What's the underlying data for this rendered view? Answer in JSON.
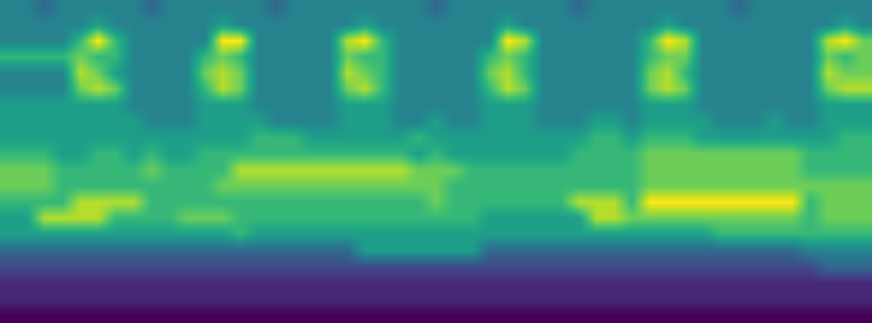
{
  "chart_data": {
    "type": "heatmap",
    "color": "Viridis",
    "tick_labels": false,
    "zlim": [
      0,
      9
    ],
    "cells": [
      [
        4,
        4,
        3,
        4,
        4,
        4,
        4,
        4,
        3,
        4,
        4,
        4,
        4,
        4,
        4,
        3,
        4,
        4,
        4,
        4,
        4,
        4,
        4,
        4,
        3,
        4,
        4,
        4,
        4,
        4,
        4,
        4,
        3,
        4,
        4,
        4,
        4,
        4,
        4,
        4,
        4,
        3,
        4,
        4,
        4,
        4,
        4,
        4,
        4
      ],
      [
        4,
        4,
        4,
        4,
        4,
        5,
        4,
        4,
        4,
        4,
        4,
        4,
        5,
        4,
        4,
        4,
        4,
        4,
        4,
        4,
        5,
        4,
        4,
        4,
        4,
        4,
        4,
        4,
        5,
        4,
        4,
        4,
        4,
        4,
        4,
        4,
        4,
        5,
        4,
        4,
        4,
        4,
        4,
        4,
        4,
        4,
        4,
        5,
        4
      ],
      [
        4,
        4,
        4,
        4,
        6,
        9,
        6,
        4,
        4,
        4,
        4,
        4,
        9,
        9,
        4,
        4,
        4,
        4,
        4,
        8,
        9,
        6,
        4,
        4,
        4,
        4,
        4,
        4,
        9,
        8,
        4,
        4,
        4,
        4,
        4,
        4,
        6,
        9,
        8,
        4,
        4,
        4,
        4,
        4,
        4,
        4,
        8,
        9,
        7
      ],
      [
        6,
        6,
        6,
        6,
        7,
        6,
        6,
        4,
        4,
        4,
        4,
        6,
        7,
        6,
        4,
        4,
        4,
        4,
        4,
        7,
        6,
        6,
        4,
        4,
        4,
        4,
        4,
        6,
        7,
        6,
        4,
        4,
        4,
        4,
        4,
        4,
        6,
        7,
        7,
        4,
        4,
        4,
        4,
        4,
        4,
        4,
        7,
        6,
        7
      ],
      [
        4,
        4,
        4,
        4,
        8,
        7,
        5,
        4,
        4,
        4,
        4,
        7,
        8,
        7,
        4,
        4,
        4,
        4,
        4,
        8,
        7,
        6,
        4,
        4,
        4,
        4,
        4,
        7,
        8,
        6,
        4,
        4,
        4,
        4,
        4,
        4,
        7,
        8,
        6,
        4,
        4,
        4,
        4,
        4,
        4,
        4,
        8,
        7,
        7
      ],
      [
        4,
        4,
        4,
        4,
        7,
        8,
        7,
        4,
        4,
        4,
        4,
        6,
        8,
        7,
        4,
        4,
        4,
        4,
        4,
        7,
        8,
        6,
        4,
        4,
        4,
        4,
        4,
        6,
        8,
        7,
        4,
        4,
        4,
        4,
        4,
        4,
        7,
        8,
        7,
        4,
        4,
        4,
        4,
        4,
        4,
        4,
        7,
        8,
        8
      ],
      [
        5,
        5,
        5,
        5,
        5,
        5,
        5,
        4,
        4,
        4,
        4,
        5,
        5,
        5,
        4,
        4,
        4,
        4,
        4,
        5,
        5,
        5,
        4,
        4,
        4,
        4,
        4,
        5,
        5,
        5,
        4,
        4,
        4,
        4,
        4,
        4,
        5,
        5,
        5,
        4,
        4,
        4,
        4,
        4,
        4,
        4,
        5,
        5,
        5
      ],
      [
        5,
        5,
        5,
        5,
        5,
        5,
        5,
        5,
        4,
        4,
        4,
        5,
        5,
        5,
        5,
        4,
        4,
        4,
        4,
        5,
        5,
        5,
        4,
        4,
        5,
        4,
        4,
        5,
        5,
        5,
        4,
        4,
        4,
        5,
        5,
        4,
        5,
        5,
        5,
        5,
        4,
        4,
        4,
        5,
        4,
        4,
        5,
        5,
        5
      ],
      [
        5,
        5,
        5,
        5,
        5,
        5,
        5,
        5,
        5,
        5,
        5,
        5,
        5,
        5,
        6,
        6,
        6,
        5,
        5,
        5,
        5,
        5,
        5,
        6,
        5,
        5,
        5,
        5,
        5,
        5,
        5,
        5,
        5,
        6,
        6,
        5,
        6,
        6,
        6,
        5,
        5,
        5,
        5,
        5,
        5,
        5,
        5,
        6,
        6
      ],
      [
        6,
        6,
        6,
        5,
        5,
        6,
        6,
        5,
        6,
        5,
        5,
        6,
        6,
        6,
        6,
        6,
        6,
        6,
        6,
        6,
        6,
        6,
        6,
        5,
        6,
        5,
        5,
        5,
        5,
        5,
        5,
        5,
        6,
        6,
        6,
        6,
        7,
        7,
        7,
        7,
        7,
        7,
        7,
        7,
        7,
        6,
        6,
        6,
        6
      ],
      [
        7,
        7,
        7,
        6,
        6,
        6,
        6,
        6,
        7,
        6,
        6,
        6,
        6,
        8,
        8,
        8,
        8,
        8,
        8,
        8,
        8,
        8,
        8,
        7,
        7,
        7,
        6,
        6,
        6,
        6,
        6,
        6,
        6,
        6,
        6,
        6,
        7,
        7,
        7,
        7,
        7,
        7,
        7,
        7,
        7,
        6,
        6,
        6,
        6
      ],
      [
        7,
        7,
        7,
        6,
        6,
        6,
        6,
        6,
        6,
        6,
        6,
        6,
        7,
        7,
        7,
        7,
        7,
        7,
        7,
        7,
        7,
        7,
        7,
        7,
        7,
        6,
        6,
        6,
        6,
        6,
        6,
        6,
        6,
        6,
        6,
        6,
        7,
        7,
        7,
        7,
        7,
        7,
        7,
        7,
        7,
        7,
        7,
        7,
        7
      ],
      [
        6,
        6,
        6,
        6,
        8,
        8,
        8,
        8,
        6,
        6,
        6,
        6,
        6,
        6,
        6,
        6,
        6,
        6,
        6,
        6,
        6,
        6,
        6,
        6,
        7,
        6,
        6,
        6,
        6,
        6,
        6,
        6,
        8,
        8,
        8,
        6,
        9,
        9,
        9,
        9,
        9,
        9,
        9,
        9,
        9,
        6,
        7,
        7,
        7
      ],
      [
        5,
        5,
        8,
        8,
        8,
        8,
        6,
        6,
        6,
        6,
        7,
        7,
        7,
        6,
        6,
        6,
        6,
        6,
        6,
        6,
        6,
        6,
        6,
        6,
        6,
        6,
        6,
        5,
        5,
        5,
        5,
        5,
        5,
        8,
        8,
        7,
        7,
        7,
        7,
        7,
        7,
        7,
        7,
        7,
        7,
        6,
        7,
        7,
        7
      ],
      [
        5,
        5,
        5,
        5,
        5,
        5,
        5,
        5,
        5,
        5,
        5,
        5,
        5,
        6,
        5,
        5,
        5,
        5,
        5,
        5,
        5,
        5,
        5,
        5,
        5,
        5,
        5,
        5,
        5,
        5,
        5,
        5,
        5,
        5,
        5,
        5,
        5,
        5,
        5,
        5,
        6,
        6,
        6,
        6,
        6,
        6,
        6,
        6,
        6
      ],
      [
        3,
        3,
        3,
        3,
        3,
        3,
        3,
        3,
        3,
        3,
        3,
        3,
        3,
        3,
        3,
        3,
        3,
        3,
        3,
        3,
        5,
        5,
        5,
        5,
        5,
        5,
        5,
        3,
        3,
        3,
        3,
        3,
        3,
        3,
        3,
        3,
        3,
        3,
        3,
        3,
        3,
        3,
        3,
        3,
        3,
        4,
        4,
        4,
        4
      ],
      [
        2,
        2,
        2,
        2,
        2,
        2,
        2,
        2,
        2,
        2,
        2,
        2,
        2,
        2,
        2,
        2,
        2,
        2,
        2,
        2,
        2,
        2,
        2,
        2,
        2,
        2,
        2,
        2,
        2,
        2,
        2,
        2,
        2,
        2,
        2,
        2,
        2,
        2,
        2,
        2,
        2,
        2,
        2,
        2,
        2,
        2,
        3,
        3,
        3
      ],
      [
        1,
        1,
        1,
        1,
        1,
        1,
        1,
        1,
        1,
        1,
        1,
        1,
        1,
        1,
        1,
        1,
        1,
        1,
        1,
        1,
        1,
        1,
        1,
        1,
        1,
        1,
        1,
        1,
        1,
        1,
        1,
        1,
        1,
        1,
        1,
        1,
        1,
        1,
        1,
        1,
        1,
        1,
        1,
        1,
        1,
        1,
        1,
        1,
        1
      ],
      [
        1,
        1,
        1,
        1,
        1,
        1,
        1,
        1,
        1,
        1,
        1,
        1,
        1,
        1,
        1,
        1,
        1,
        1,
        1,
        1,
        1,
        1,
        1,
        1,
        1,
        1,
        1,
        1,
        1,
        1,
        1,
        1,
        1,
        1,
        1,
        1,
        1,
        1,
        1,
        1,
        1,
        1,
        1,
        1,
        1,
        1,
        1,
        1,
        1
      ],
      [
        0,
        0,
        0,
        0,
        0,
        0,
        0,
        0,
        0,
        0,
        0,
        0,
        0,
        0,
        0,
        0,
        0,
        0,
        0,
        0,
        0,
        0,
        0,
        0,
        0,
        0,
        0,
        0,
        0,
        0,
        0,
        0,
        0,
        0,
        0,
        0,
        0,
        0,
        0,
        0,
        0,
        0,
        0,
        0,
        0,
        0,
        0,
        0,
        0
      ]
    ]
  }
}
